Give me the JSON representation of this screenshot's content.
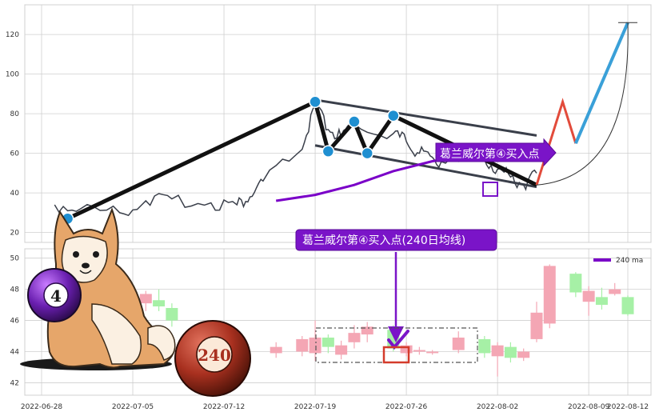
{
  "colors": {
    "up_candle": "#f4a6b4",
    "down_candle": "#a6f0a6",
    "price_line": "#3a3f4a",
    "ma_line": "#7a00c8",
    "callout_bg": "#7a14c8",
    "touch_point": "#1f8fd1",
    "highlight_box": "#d43b2b",
    "projection_up": "#3aa0d8",
    "projection_red": "#e24b3b",
    "grid": "#cfcfcf"
  },
  "icons": {
    "mascot": "shiba-inu-dog-icon",
    "ball_four": "purple-billiard-ball-4-icon",
    "ball_240": "red-billiard-ball-240-icon",
    "check": "purple-check-mark-icon"
  },
  "ball_four_label": "4",
  "ball_240_label": "240",
  "chart_data": [
    {
      "type": "line",
      "panel": "top",
      "title": "",
      "xlabel": "",
      "ylabel": "",
      "ylim": [
        15,
        135
      ],
      "yticks": [
        20,
        40,
        60,
        80,
        100,
        120
      ],
      "grid": true,
      "series": [
        {
          "name": "",
          "x": [
            "2022-06-29",
            "2022-07-01",
            "2022-07-04",
            "2022-07-06",
            "2022-07-08",
            "2022-07-11",
            "2022-07-13",
            "2022-07-14",
            "2022-07-15",
            "2022-07-18",
            "2022-07-19",
            "2022-07-20",
            "2022-07-21",
            "2022-07-22",
            "2022-07-25",
            "2022-07-26",
            "2022-07-27",
            "2022-07-28",
            "2022-07-29",
            "2022-08-01",
            "2022-08-02",
            "2022-08-03",
            "2022-08-04",
            "2022-08-05"
          ],
          "values": [
            34,
            32,
            30,
            36,
            37,
            35,
            34,
            38,
            46,
            62,
            84,
            72,
            68,
            75,
            70,
            66,
            60,
            58,
            55,
            57,
            52,
            48,
            44,
            50
          ]
        },
        {
          "name": "",
          "x": [
            "2022-07-16",
            "2022-07-19",
            "2022-07-22",
            "2022-07-25",
            "2022-07-28",
            "2022-08-01",
            "2022-08-04"
          ],
          "values": [
            36,
            39,
            44,
            51,
            56,
            60,
            63
          ]
        }
      ],
      "pattern_points": [
        {
          "x": "2022-06-30",
          "y": 27
        },
        {
          "x": "2022-07-19",
          "y": 86
        },
        {
          "x": "2022-07-20",
          "y": 61
        },
        {
          "x": "2022-07-22",
          "y": 76
        },
        {
          "x": "2022-07-23",
          "y": 60
        },
        {
          "x": "2022-07-25",
          "y": 79
        },
        {
          "x": "2022-08-05",
          "y": 44
        }
      ],
      "projection": [
        {
          "x": "2022-08-05",
          "y": 44
        },
        {
          "x": "2022-08-07",
          "y": 86
        },
        {
          "x": "2022-08-08",
          "y": 65
        },
        {
          "x": "2022-08-12",
          "y": 126
        }
      ],
      "annotations": [
        "葛兰威尔第④买入点"
      ]
    },
    {
      "type": "bar",
      "panel": "bottom",
      "ylim": [
        41.2,
        50.6
      ],
      "yticks": [
        42,
        44,
        46,
        48,
        50
      ],
      "xticks": [
        "2022-06-28",
        "2022-07-05",
        "2022-07-12",
        "2022-07-19",
        "2022-07-26",
        "2022-08-02",
        "2022-08-09",
        "2022-08-12"
      ],
      "grid": true,
      "legend": {
        "label": "240 ma",
        "placement": "top-right"
      },
      "candles": [
        {
          "d": "2022-07-03",
          "open": 45.2,
          "close": 46.1,
          "high": 46.3,
          "low": 45.0
        },
        {
          "d": "2022-07-06",
          "open": 47.1,
          "close": 47.7,
          "high": 47.9,
          "low": 46.6
        },
        {
          "d": "2022-07-07",
          "open": 47.3,
          "close": 46.9,
          "high": 48.0,
          "low": 46.6
        },
        {
          "d": "2022-07-08",
          "open": 46.8,
          "close": 46.0,
          "high": 47.1,
          "low": 45.6
        },
        {
          "d": "2022-07-11",
          "open": 44.8,
          "close": 44.0,
          "high": 45.2,
          "low": 43.6
        },
        {
          "d": "2022-07-12",
          "open": 44.5,
          "close": 43.8,
          "high": 44.8,
          "low": 43.4
        },
        {
          "d": "2022-07-16",
          "open": 43.9,
          "close": 44.3,
          "high": 44.6,
          "low": 43.6
        },
        {
          "d": "2022-07-18",
          "open": 44.0,
          "close": 44.8,
          "high": 45.0,
          "low": 43.7
        },
        {
          "d": "2022-07-19",
          "open": 43.9,
          "close": 44.9,
          "high": 46.0,
          "low": 43.4
        },
        {
          "d": "2022-07-20",
          "open": 44.9,
          "close": 44.3,
          "high": 45.1,
          "low": 43.9
        },
        {
          "d": "2022-07-21",
          "open": 43.8,
          "close": 44.4,
          "high": 44.7,
          "low": 43.5
        },
        {
          "d": "2022-07-22",
          "open": 44.6,
          "close": 45.2,
          "high": 45.7,
          "low": 44.2
        },
        {
          "d": "2022-07-23",
          "open": 45.1,
          "close": 45.6,
          "high": 45.9,
          "low": 44.6
        },
        {
          "d": "2022-07-25",
          "open": 45.4,
          "close": 44.2,
          "high": 45.7,
          "low": 44.0
        },
        {
          "d": "2022-07-26",
          "open": 43.9,
          "close": 44.4,
          "high": 44.6,
          "low": 43.7
        },
        {
          "d": "2022-07-27",
          "open": 44.0,
          "close": 44.1,
          "high": 44.3,
          "low": 43.8
        },
        {
          "d": "2022-07-28",
          "open": 43.9,
          "close": 44.0,
          "high": 44.1,
          "low": 43.8
        },
        {
          "d": "2022-07-30",
          "open": 44.1,
          "close": 44.9,
          "high": 45.3,
          "low": 43.9
        },
        {
          "d": "2022-08-01",
          "open": 44.8,
          "close": 43.9,
          "high": 45.0,
          "low": 43.6
        },
        {
          "d": "2022-08-02",
          "open": 43.7,
          "close": 44.4,
          "high": 44.6,
          "low": 42.4
        },
        {
          "d": "2022-08-03",
          "open": 44.3,
          "close": 43.6,
          "high": 44.6,
          "low": 43.3
        },
        {
          "d": "2022-08-04",
          "open": 43.6,
          "close": 44.0,
          "high": 44.2,
          "low": 43.4
        },
        {
          "d": "2022-08-05",
          "open": 44.8,
          "close": 46.5,
          "high": 47.2,
          "low": 44.6
        },
        {
          "d": "2022-08-06",
          "open": 45.8,
          "close": 49.5,
          "high": 49.6,
          "low": 45.5
        },
        {
          "d": "2022-08-08",
          "open": 49.0,
          "close": 47.8,
          "high": 49.1,
          "low": 47.5
        },
        {
          "d": "2022-08-09",
          "open": 47.2,
          "close": 47.9,
          "high": 48.2,
          "low": 46.3
        },
        {
          "d": "2022-08-10",
          "open": 47.5,
          "close": 47.0,
          "high": 48.1,
          "low": 46.7
        },
        {
          "d": "2022-08-11",
          "open": 47.7,
          "close": 48.0,
          "high": 48.4,
          "low": 47.6
        },
        {
          "d": "2022-08-12",
          "open": 47.5,
          "close": 46.4,
          "high": 47.6,
          "low": 46.3
        }
      ],
      "annotations": [
        "葛兰威尔第④买入点(240日均线)"
      ]
    }
  ]
}
